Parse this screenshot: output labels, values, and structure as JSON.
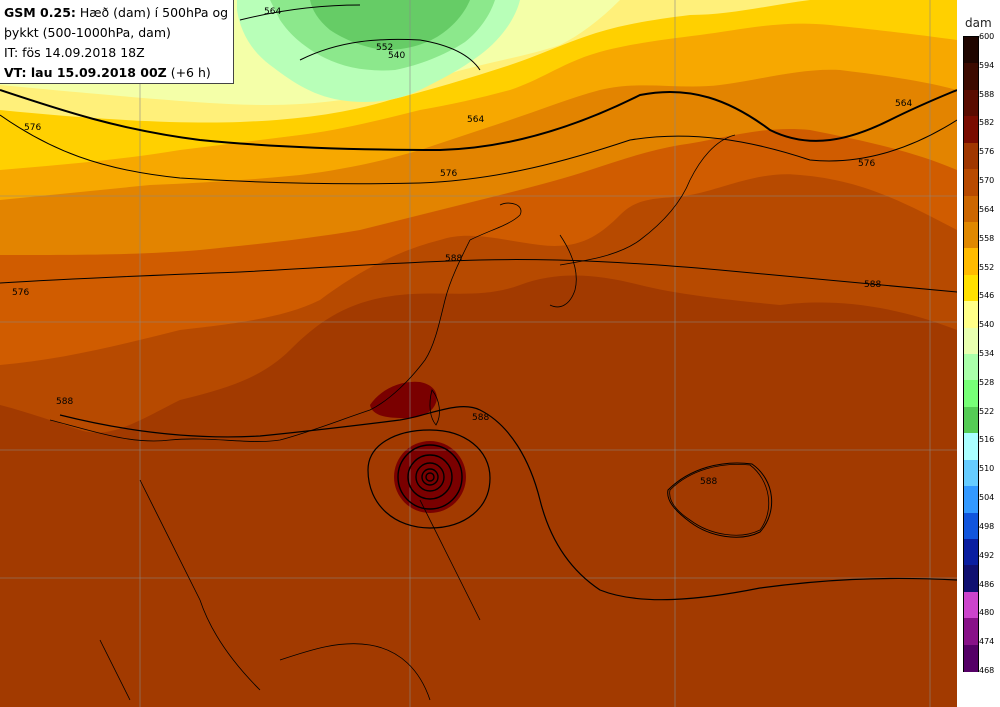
{
  "info": {
    "model": "GSM 0.25:",
    "desc1": " Hæð (dam) í 500hPa og",
    "desc2": "þykkt (500-1000hPa, dam)",
    "it": "IT: fös 14.09.2018 18Z",
    "vt_label": "VT: lau 15.09.2018 00Z",
    "vt_lead": " (+6 h)"
  },
  "legend": {
    "unit": "dam",
    "levels": [
      "600",
      "594",
      "588",
      "582",
      "576",
      "570",
      "564",
      "558",
      "552",
      "546",
      "540",
      "534",
      "528",
      "522",
      "516",
      "510",
      "504",
      "498",
      "492",
      "486",
      "480",
      "474",
      "468"
    ],
    "colors": [
      "#1e0500",
      "#3c0a00",
      "#5a0c00",
      "#7a0c00",
      "#a03700",
      "#b84a00",
      "#cc6600",
      "#e08800",
      "#ffbb00",
      "#ffe000",
      "#ffff88",
      "#e8ffb0",
      "#aaffaa",
      "#77ff77",
      "#55cc55",
      "#aaffff",
      "#66ccff",
      "#3399ff",
      "#1155dd",
      "#0a1ea0",
      "#101070",
      "#cc44cc",
      "#881188",
      "#550066"
    ]
  },
  "contour_labels": [
    "564",
    "552",
    "540",
    "564",
    "576",
    "576",
    "576",
    "576",
    "564",
    "588",
    "588",
    "588",
    "588",
    "588"
  ],
  "map_colors": {
    "c600": "#7a0000",
    "c588": "#a03700",
    "c582": "#b74a00",
    "c576": "#d05c00",
    "c570": "#e38400",
    "c564": "#f7a800",
    "c558": "#ffd000",
    "c552": "#fff07a",
    "c546": "#f4ffa8",
    "c540": "#b8ffb8",
    "c534": "#8ce88c",
    "c528": "#66cc66"
  }
}
